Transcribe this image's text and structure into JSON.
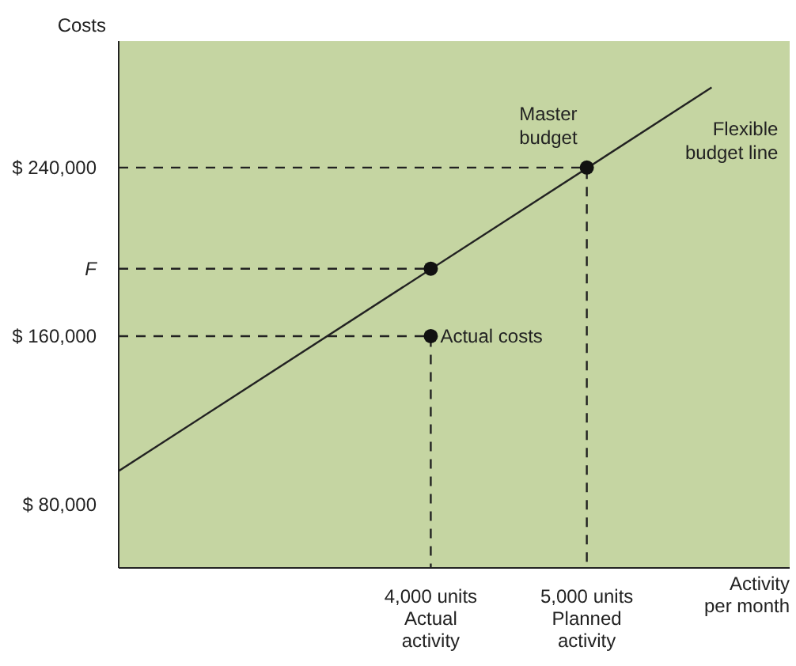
{
  "chart_data": {
    "type": "line",
    "ylabel": "Costs",
    "xlabel": "Activity\nper month",
    "xlim": [
      2000,
      6300
    ],
    "ylim": [
      50000,
      300000
    ],
    "xticks": [
      {
        "value": 4000,
        "label": "4,000 units\nActual\nactivity"
      },
      {
        "value": 5000,
        "label": "5,000 units\nPlanned\nactivity"
      }
    ],
    "yticks": [
      {
        "value": 80000,
        "label": "$ 80,000"
      },
      {
        "value": 160000,
        "label": "$ 160,000"
      },
      {
        "value": 192000,
        "label": "F"
      },
      {
        "value": 240000,
        "label": "$ 240,000"
      }
    ],
    "series": [
      {
        "color": "#222222",
        "line_style": "solid",
        "marker": "none",
        "x": [
          2000,
          5800
        ],
        "values": [
          96000,
          278000
        ]
      },
      {
        "type": "line",
        "color": "#222222",
        "line_style": "dashed",
        "marker": "none",
        "x": [
          2000,
          5000,
          5000
        ],
        "values": [
          240000,
          240000,
          50000
        ]
      },
      {
        "type": "line",
        "color": "#222222",
        "line_style": "dashed",
        "marker": "none",
        "x": [
          2000,
          4000
        ],
        "values": [
          192000,
          192000
        ]
      },
      {
        "type": "line",
        "color": "#222222",
        "line_style": "dashed",
        "marker": "none",
        "x": [
          2000,
          4000,
          4000
        ],
        "values": [
          160000,
          160000,
          50000
        ]
      },
      {
        "type": "scatter",
        "color": "#111111",
        "marker": "circle",
        "x": [
          4000,
          5000,
          4000
        ],
        "values": [
          192000,
          240000,
          160000
        ]
      }
    ],
    "annotations": [
      {
        "text": "Master\nbudget",
        "x": 5000,
        "y": 240000
      },
      {
        "text": "Flexible\nbudget line",
        "x": 5800,
        "y": 278000
      },
      {
        "text": "Actual costs",
        "x": 4000,
        "y": 160000
      }
    ]
  }
}
